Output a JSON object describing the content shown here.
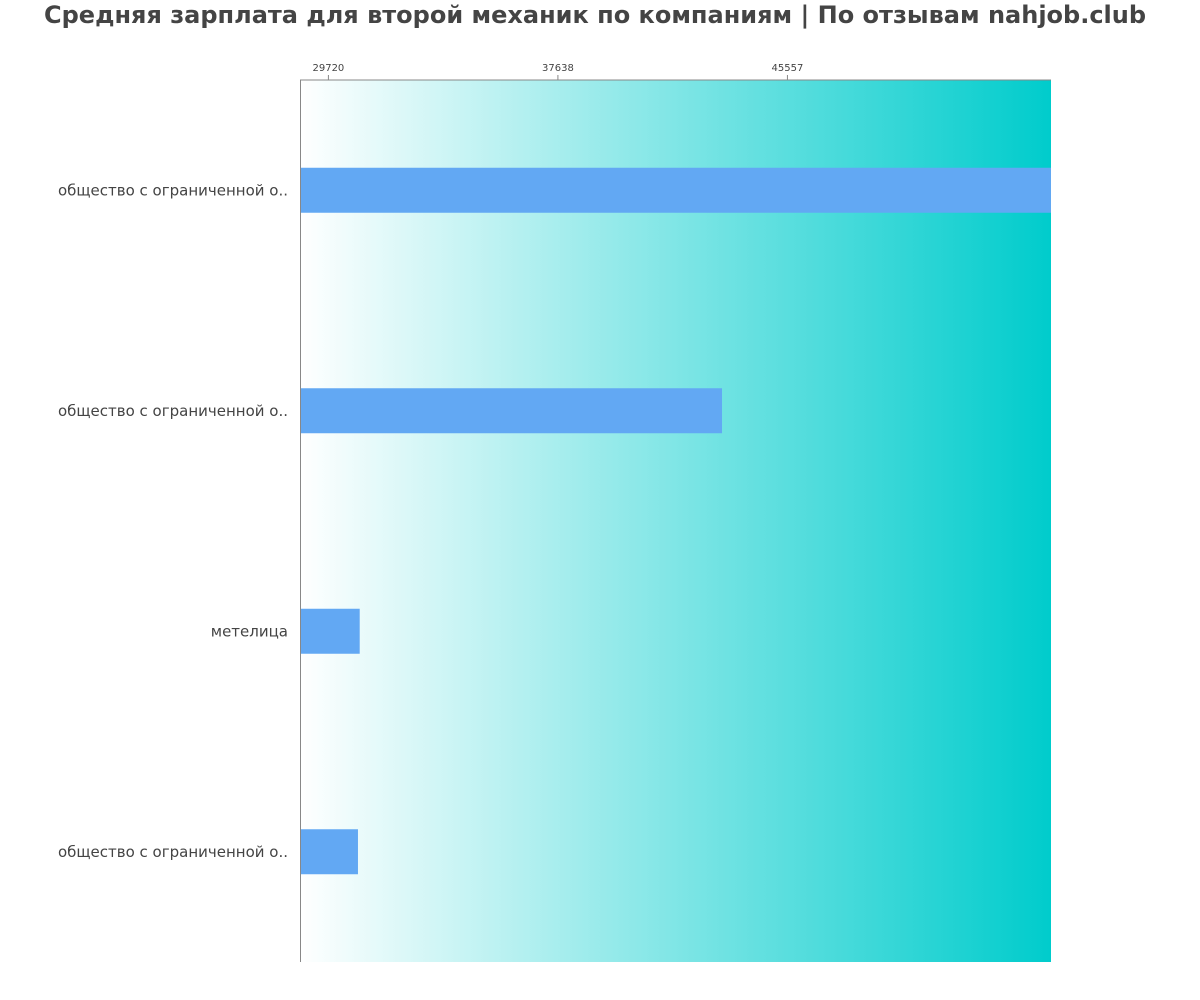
{
  "title": "Средняя зарплата для второй механик по компаниям  | По отзывам nahjob.club",
  "colors": {
    "bar": "#62a8f3",
    "gradient_start": "#ffffff",
    "gradient_end": "#00cccc",
    "axis": "#888888",
    "text": "#444444"
  },
  "chart_data": {
    "type": "bar",
    "orientation": "horizontal",
    "title": "Средняя зарплата для второй механик по компаниям  | По отзывам nahjob.club",
    "categories": [
      "общество с ограниченной о..",
      "общество с ограниченной о..",
      "метелица",
      "общество с ограниченной о.."
    ],
    "values": [
      54650,
      43300,
      30800,
      30740
    ],
    "xticks": [
      29720,
      37638,
      45557
    ],
    "xlim": [
      28740,
      54650
    ],
    "axis_position": "top",
    "grid": false,
    "legend": "none"
  }
}
